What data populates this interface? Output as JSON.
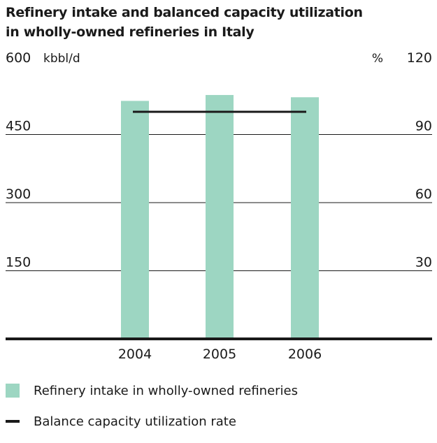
{
  "title_line1": "Refinery intake and balanced capacity utilization",
  "title_line2": "in wholly-owned refineries in Italy",
  "colors": {
    "bar": "#9dd6c2",
    "line": "#1a1a1a",
    "grid": "#1a1a1a",
    "text": "#1a1a1a"
  },
  "chart_data": {
    "type": "bar",
    "categories": [
      "2004",
      "2005",
      "2006"
    ],
    "series": [
      {
        "name": "Refinery intake in wholly-owned refineries",
        "type": "bar",
        "axis": "left",
        "values": [
          524,
          537,
          532
        ]
      },
      {
        "name": "Balance capacity utilization rate",
        "type": "line",
        "axis": "right",
        "values": [
          100,
          100,
          100
        ]
      }
    ],
    "y_left": {
      "unit": "kbbl/d",
      "range": [
        0,
        600
      ],
      "ticks": [
        150,
        300,
        450,
        600
      ],
      "tick_labels": [
        "150",
        "300",
        "450",
        "600"
      ]
    },
    "y_right": {
      "unit": "%",
      "range": [
        0,
        120
      ],
      "ticks": [
        30,
        60,
        90,
        120
      ],
      "tick_labels": [
        "30",
        "60",
        "90",
        "120"
      ]
    },
    "grid": true,
    "legend": "bottom-left"
  }
}
